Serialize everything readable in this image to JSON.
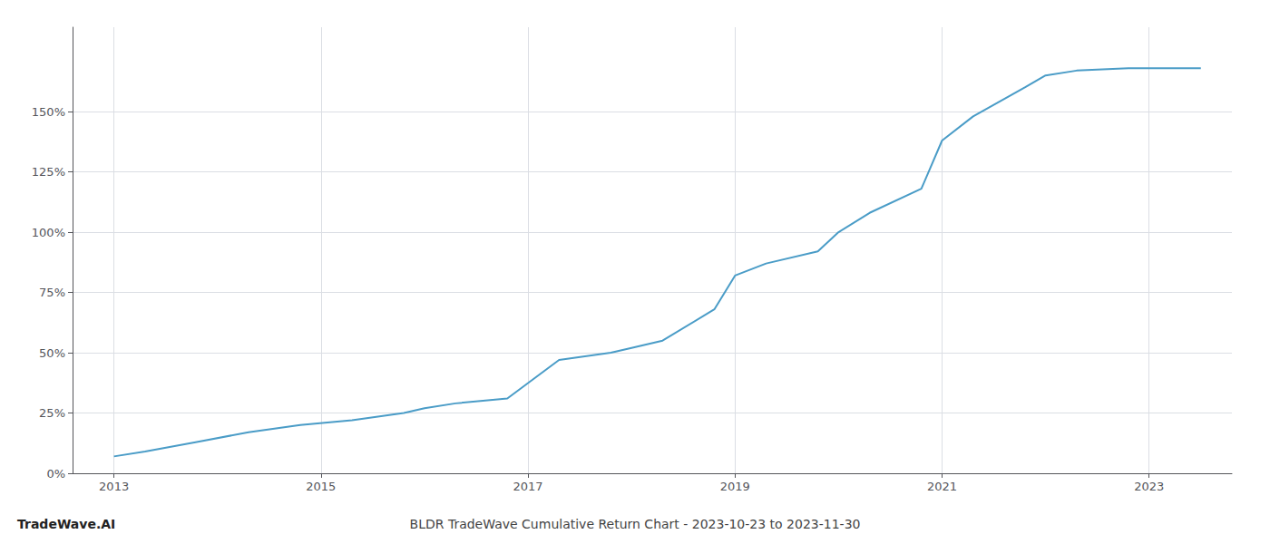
{
  "chart_data": {
    "type": "line",
    "title": "BLDR TradeWave Cumulative Return Chart - 2023-10-23 to 2023-11-30",
    "annotations": [
      "TradeWave.AI"
    ],
    "x": [
      2013.0,
      2013.3,
      2013.8,
      2014.3,
      2014.8,
      2015.3,
      2015.8,
      2016.0,
      2016.3,
      2016.8,
      2017.3,
      2017.8,
      2018.0,
      2018.3,
      2018.8,
      2019.0,
      2019.3,
      2019.8,
      2020.0,
      2020.3,
      2020.8,
      2021.0,
      2021.3,
      2021.8,
      2022.0,
      2022.3,
      2022.8,
      2023.0,
      2023.5
    ],
    "values": [
      7,
      9,
      13,
      17,
      20,
      22,
      25,
      27,
      29,
      31,
      47,
      50,
      52,
      55,
      68,
      82,
      87,
      92,
      100,
      108,
      118,
      138,
      148,
      160,
      165,
      167,
      168,
      168,
      168
    ],
    "color": "#4a9cc7",
    "xlim": [
      2012.6,
      2023.8
    ],
    "xticks": [
      2013,
      2015,
      2017,
      2019,
      2021,
      2023
    ],
    "ylim": [
      0,
      185
    ],
    "yticks": [
      {
        "value": 0,
        "label": "0%"
      },
      {
        "value": 25,
        "label": "25%"
      },
      {
        "value": 50,
        "label": "50%"
      },
      {
        "value": 75,
        "label": "75%"
      },
      {
        "value": 100,
        "label": "100%"
      },
      {
        "value": 125,
        "label": "125%"
      },
      {
        "value": 150,
        "label": "150%"
      }
    ],
    "grid": true
  }
}
